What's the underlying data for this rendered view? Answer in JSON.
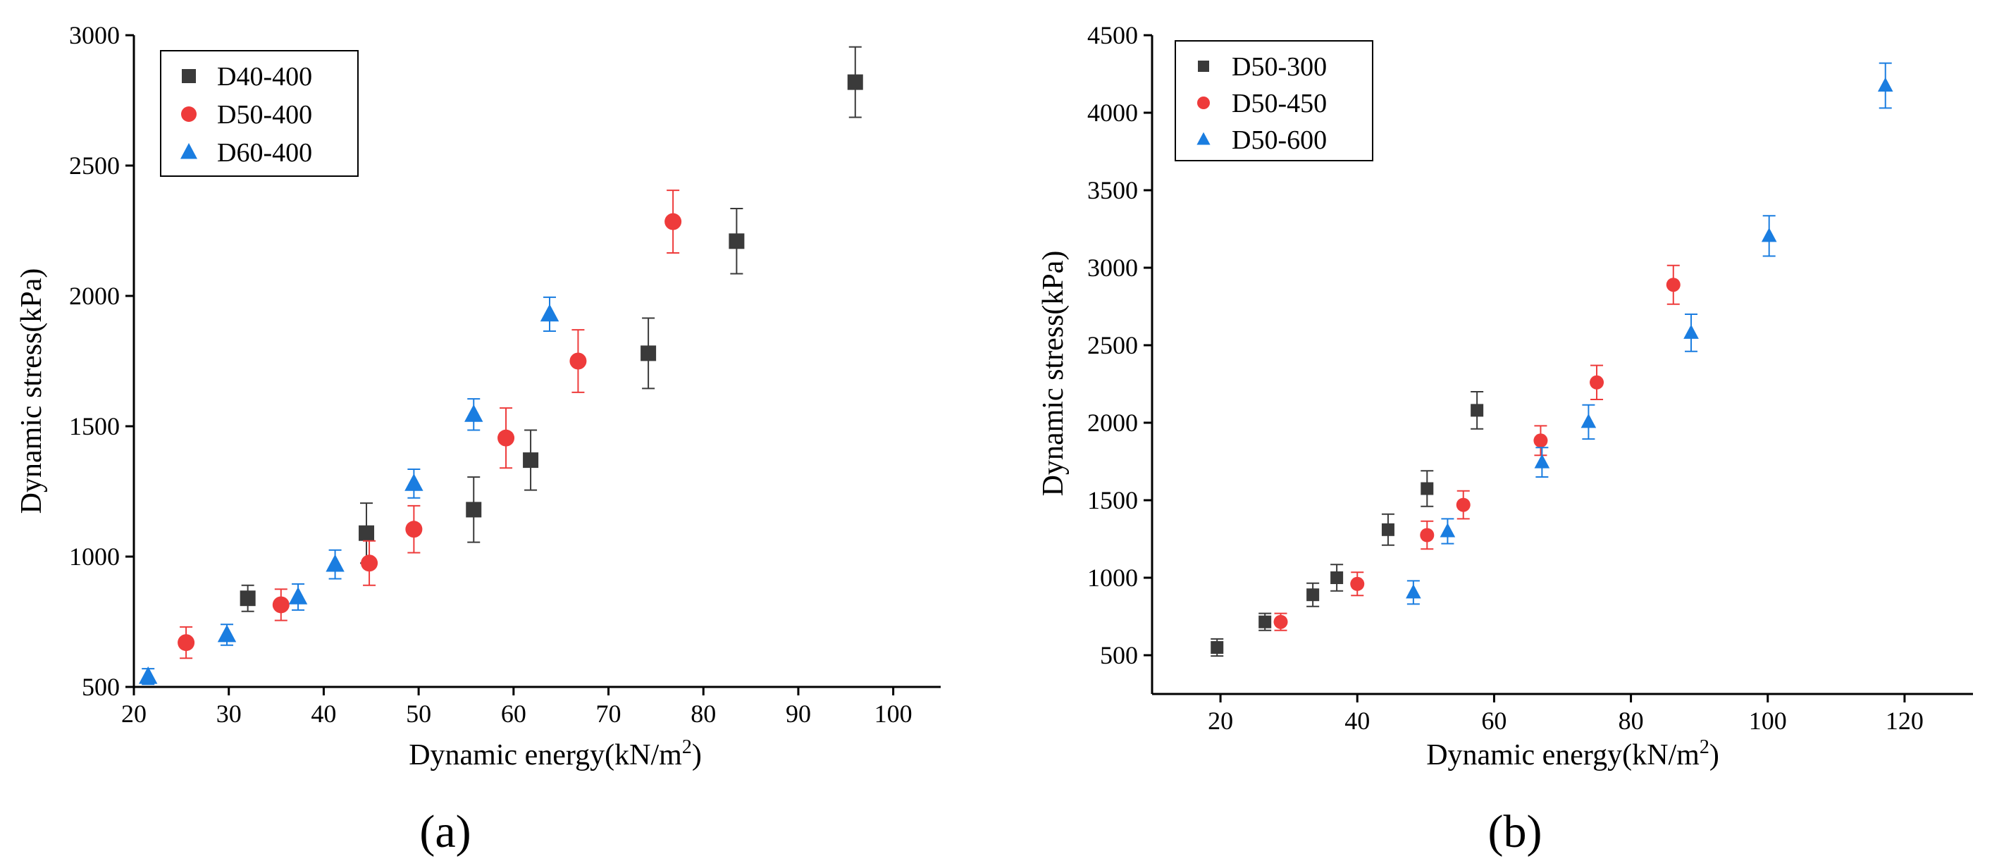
{
  "chart_data": [
    {
      "type": "scatter",
      "panel_label": "(a)",
      "xlabel_main": "Dynamic energy(kN/m",
      "xlabel_sup": "2",
      "xlabel_end": ")",
      "ylabel": "Dynamic stress(kPa)",
      "xlim": [
        20,
        105
      ],
      "ylim": [
        500,
        3000
      ],
      "xticks": [
        20,
        30,
        40,
        50,
        60,
        70,
        80,
        90,
        100
      ],
      "yticks": [
        500,
        1000,
        1500,
        2000,
        2500,
        3000
      ],
      "legend_position": "top-left",
      "series": [
        {
          "name": "D40-400",
          "marker": "square",
          "color": "#3a3a3a",
          "x": [
            32,
            44.5,
            55.8,
            61.8,
            74.2,
            83.5,
            96
          ],
          "y": [
            840,
            1090,
            1180,
            1370,
            1780,
            2210,
            2820
          ],
          "err": [
            50,
            115,
            125,
            115,
            135,
            125,
            135
          ]
        },
        {
          "name": "D50-400",
          "marker": "circle",
          "color": "#ee3b3b",
          "x": [
            25.5,
            35.5,
            44.8,
            49.5,
            59.2,
            66.8,
            76.8
          ],
          "y": [
            670,
            815,
            975,
            1105,
            1455,
            1750,
            2285
          ],
          "err": [
            60,
            60,
            85,
            90,
            115,
            120,
            120
          ]
        },
        {
          "name": "D60-400",
          "marker": "triangle",
          "color": "#1a7de0",
          "x": [
            21.5,
            29.8,
            37.3,
            41.2,
            49.5,
            55.8,
            63.8
          ],
          "y": [
            540,
            700,
            845,
            970,
            1280,
            1545,
            1930
          ],
          "err": [
            30,
            40,
            50,
            55,
            55,
            60,
            65
          ]
        }
      ]
    },
    {
      "type": "scatter",
      "panel_label": "(b)",
      "xlabel_main": "Dynamic energy(kN/m",
      "xlabel_sup": "2",
      "xlabel_end": ")",
      "ylabel": "Dynamic stress(kPa)",
      "xlim": [
        10,
        130
      ],
      "ylim": [
        250,
        4500
      ],
      "xticks": [
        20,
        40,
        60,
        80,
        100,
        120
      ],
      "yticks": [
        500,
        1000,
        1500,
        2000,
        2500,
        3000,
        3500,
        4000,
        4500
      ],
      "legend_position": "top-left",
      "series": [
        {
          "name": "D50-300",
          "marker": "square",
          "color": "#3a3a3a",
          "x": [
            19.5,
            26.5,
            33.5,
            37,
            44.5,
            50.2,
            57.5
          ],
          "y": [
            550,
            715,
            890,
            1000,
            1310,
            1575,
            2080
          ],
          "err": [
            55,
            55,
            75,
            85,
            100,
            115,
            120
          ]
        },
        {
          "name": "D50-450",
          "marker": "circle",
          "color": "#ee3b3b",
          "x": [
            28.8,
            40,
            50.2,
            55.5,
            66.8,
            75,
            86.2
          ],
          "y": [
            715,
            960,
            1275,
            1470,
            1885,
            2260,
            2890
          ],
          "err": [
            55,
            75,
            90,
            90,
            95,
            110,
            125
          ]
        },
        {
          "name": "D50-600",
          "marker": "triangle",
          "color": "#1a7de0",
          "x": [
            48.2,
            53.2,
            67,
            73.8,
            88.8,
            100.2,
            117.2
          ],
          "y": [
            905,
            1300,
            1745,
            2005,
            2580,
            3205,
            4175
          ],
          "err": [
            75,
            80,
            95,
            110,
            120,
            130,
            145
          ]
        }
      ]
    }
  ]
}
